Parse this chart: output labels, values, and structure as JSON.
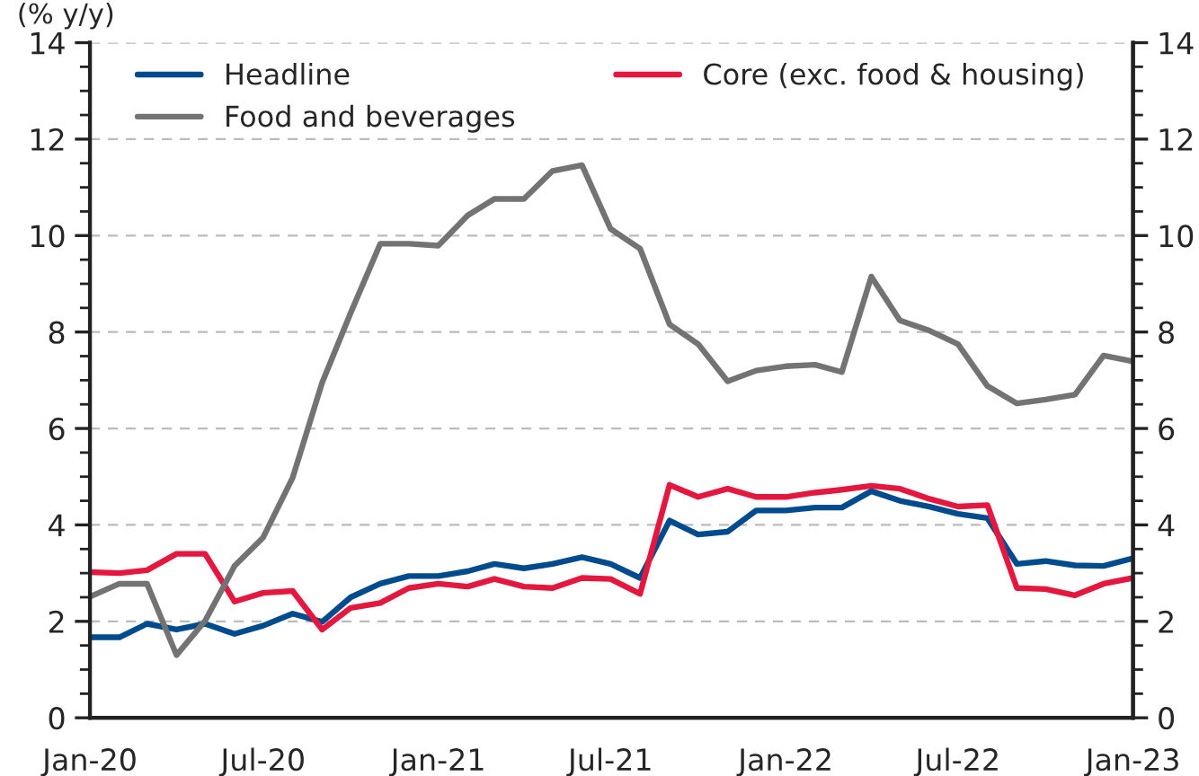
{
  "chart_data": {
    "type": "line",
    "ylabel": "(% y/y)",
    "x": [
      "2020-01",
      "2020-02",
      "2020-03",
      "2020-04",
      "2020-05",
      "2020-06",
      "2020-07",
      "2020-08",
      "2020-09",
      "2020-10",
      "2020-11",
      "2020-12",
      "2021-01",
      "2021-02",
      "2021-03",
      "2021-04",
      "2021-05",
      "2021-06",
      "2021-07",
      "2021-08",
      "2021-09",
      "2021-10",
      "2021-11",
      "2021-12",
      "2022-01",
      "2022-02",
      "2022-03",
      "2022-04",
      "2022-05",
      "2022-06",
      "2022-07",
      "2022-08",
      "2022-09",
      "2022-10",
      "2022-11",
      "2022-12",
      "2023-01"
    ],
    "series": [
      {
        "name": "Headline",
        "color": "#004b8d",
        "values": [
          1.67,
          1.67,
          1.95,
          1.83,
          1.95,
          1.74,
          1.91,
          2.16,
          1.99,
          2.5,
          2.78,
          2.94,
          2.94,
          3.04,
          3.19,
          3.1,
          3.19,
          3.33,
          3.19,
          2.9,
          4.09,
          3.8,
          3.86,
          4.3,
          4.3,
          4.36,
          4.36,
          4.7,
          4.5,
          4.38,
          4.23,
          4.14,
          3.19,
          3.25,
          3.16,
          3.15,
          3.31
        ]
      },
      {
        "name": "Core (exc. food & housing)",
        "color": "#e4173e",
        "values": [
          3.02,
          3.0,
          3.06,
          3.4,
          3.4,
          2.41,
          2.59,
          2.63,
          1.83,
          2.28,
          2.38,
          2.69,
          2.78,
          2.72,
          2.88,
          2.72,
          2.69,
          2.9,
          2.88,
          2.57,
          4.83,
          4.58,
          4.75,
          4.58,
          4.58,
          4.67,
          4.73,
          4.81,
          4.75,
          4.54,
          4.38,
          4.41,
          2.69,
          2.67,
          2.54,
          2.78,
          2.9
        ]
      },
      {
        "name": "Food and beverages",
        "color": "#737373",
        "values": [
          2.51,
          2.78,
          2.78,
          1.3,
          2.01,
          3.15,
          3.74,
          4.98,
          6.95,
          8.4,
          9.83,
          9.83,
          9.79,
          10.42,
          10.76,
          10.76,
          11.34,
          11.46,
          10.14,
          9.73,
          8.16,
          7.75,
          6.98,
          7.2,
          7.29,
          7.32,
          7.17,
          9.15,
          8.24,
          8.03,
          7.75,
          6.88,
          6.52,
          6.6,
          6.7,
          7.51,
          7.39
        ]
      }
    ],
    "xlim": [
      "2020-01",
      "2023-01"
    ],
    "xticks": [
      {
        "value": "2020-01",
        "label": "Jan-20"
      },
      {
        "value": "2020-07",
        "label": "Jul-20"
      },
      {
        "value": "2021-01",
        "label": "Jan-21"
      },
      {
        "value": "2021-07",
        "label": "Jul-21"
      },
      {
        "value": "2022-01",
        "label": "Jan-22"
      },
      {
        "value": "2022-07",
        "label": "Jul-22"
      },
      {
        "value": "2023-01",
        "label": "Jan-23"
      }
    ],
    "ylim": [
      0,
      14
    ],
    "yticks": [
      0,
      2,
      4,
      6,
      8,
      10,
      12,
      14
    ],
    "y2lim": [
      0,
      14
    ],
    "y2ticks": [
      0,
      2,
      4,
      6,
      8,
      10,
      12,
      14
    ],
    "grid": "y",
    "legend": "top",
    "line_style": "solid",
    "marker": "none"
  }
}
